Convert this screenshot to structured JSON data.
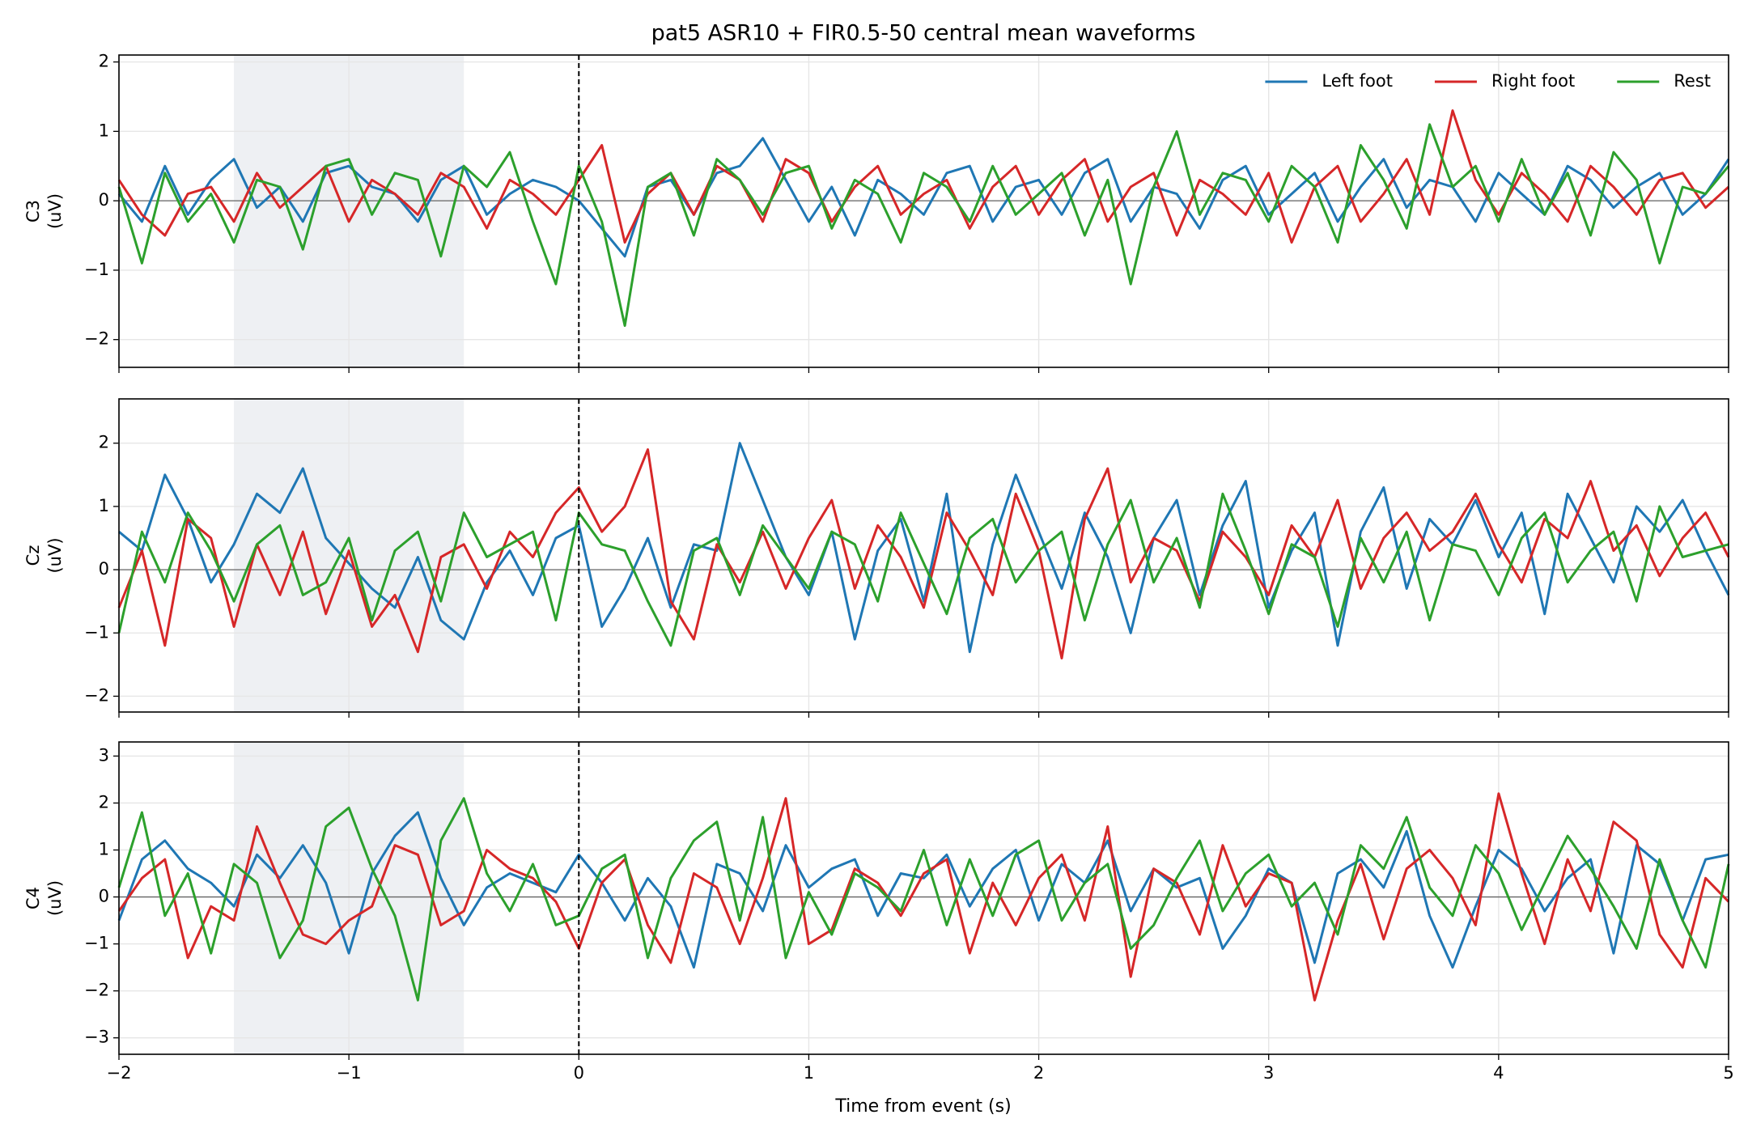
{
  "chart_data": [
    {
      "type": "line",
      "title": "pat5 ASR10 + FIR0.5-50 central mean waveforms",
      "ylabel": [
        "C3",
        "(uV)"
      ],
      "x": [
        -2.0,
        -1.9,
        -1.8,
        -1.7,
        -1.6,
        -1.5,
        -1.4,
        -1.3,
        -1.2,
        -1.1,
        -1.0,
        -0.9,
        -0.8,
        -0.7,
        -0.6,
        -0.5,
        -0.4,
        -0.3,
        -0.2,
        -0.1,
        0.0,
        0.1,
        0.2,
        0.3,
        0.4,
        0.5,
        0.6,
        0.7,
        0.8,
        0.9,
        1.0,
        1.1,
        1.2,
        1.3,
        1.4,
        1.5,
        1.6,
        1.7,
        1.8,
        1.9,
        2.0,
        2.1,
        2.2,
        2.3,
        2.4,
        2.5,
        2.6,
        2.7,
        2.8,
        2.9,
        3.0,
        3.1,
        3.2,
        3.3,
        3.4,
        3.5,
        3.6,
        3.7,
        3.8,
        3.9,
        4.0,
        4.1,
        4.2,
        4.3,
        4.4,
        4.5,
        4.6,
        4.7,
        4.8,
        4.9,
        5.0
      ],
      "xlim": [
        -2,
        5
      ],
      "xticks": [
        -2,
        -1,
        0,
        1,
        2,
        3,
        4,
        5
      ],
      "ylim": [
        -2.4,
        2.1
      ],
      "yticks": [
        {
          "value": -2,
          "label": "−2"
        },
        {
          "value": -1,
          "label": "−1"
        },
        0,
        1,
        2
      ],
      "grid": true,
      "legend": "upper right",
      "shade": [
        -1.5,
        -0.5
      ],
      "shade_color": "#eef0f3",
      "vline": 0,
      "hline": 0,
      "series": [
        {
          "name": "Left foot",
          "color": "#1f77b4",
          "values": [
            0.1,
            -0.3,
            0.5,
            -0.2,
            0.3,
            0.6,
            -0.1,
            0.2,
            -0.3,
            0.4,
            0.5,
            0.2,
            0.1,
            -0.3,
            0.3,
            0.5,
            -0.2,
            0.1,
            0.3,
            0.2,
            0.0,
            -0.4,
            -0.8,
            0.2,
            0.3,
            -0.2,
            0.4,
            0.5,
            0.9,
            0.3,
            -0.3,
            0.2,
            -0.5,
            0.3,
            0.1,
            -0.2,
            0.4,
            0.5,
            -0.3,
            0.2,
            0.3,
            -0.2,
            0.4,
            0.6,
            -0.3,
            0.2,
            0.1,
            -0.4,
            0.3,
            0.5,
            -0.2,
            0.1,
            0.4,
            -0.3,
            0.2,
            0.6,
            -0.1,
            0.3,
            0.2,
            -0.3,
            0.4,
            0.1,
            -0.2,
            0.5,
            0.3,
            -0.1,
            0.2,
            0.4,
            -0.2,
            0.1,
            0.6
          ]
        },
        {
          "name": "Right foot",
          "color": "#d62728",
          "values": [
            0.3,
            -0.2,
            -0.5,
            0.1,
            0.2,
            -0.3,
            0.4,
            -0.1,
            0.2,
            0.5,
            -0.3,
            0.3,
            0.1,
            -0.2,
            0.4,
            0.2,
            -0.4,
            0.3,
            0.1,
            -0.2,
            0.3,
            0.8,
            -0.6,
            0.1,
            0.4,
            -0.2,
            0.5,
            0.3,
            -0.3,
            0.6,
            0.4,
            -0.3,
            0.2,
            0.5,
            -0.2,
            0.1,
            0.3,
            -0.4,
            0.2,
            0.5,
            -0.2,
            0.3,
            0.6,
            -0.3,
            0.2,
            0.4,
            -0.5,
            0.3,
            0.1,
            -0.2,
            0.4,
            -0.6,
            0.2,
            0.5,
            -0.3,
            0.1,
            0.6,
            -0.2,
            1.3,
            0.3,
            -0.2,
            0.4,
            0.1,
            -0.3,
            0.5,
            0.2,
            -0.2,
            0.3,
            0.4,
            -0.1,
            0.2
          ]
        },
        {
          "name": "Rest",
          "color": "#2ca02c",
          "values": [
            0.2,
            -0.9,
            0.4,
            -0.3,
            0.1,
            -0.6,
            0.3,
            0.2,
            -0.7,
            0.5,
            0.6,
            -0.2,
            0.4,
            0.3,
            -0.8,
            0.5,
            0.2,
            0.7,
            -0.3,
            -1.2,
            0.5,
            -0.3,
            -1.8,
            0.2,
            0.4,
            -0.5,
            0.6,
            0.3,
            -0.2,
            0.4,
            0.5,
            -0.4,
            0.3,
            0.1,
            -0.6,
            0.4,
            0.2,
            -0.3,
            0.5,
            -0.2,
            0.1,
            0.4,
            -0.5,
            0.3,
            -1.2,
            0.2,
            1.0,
            -0.2,
            0.4,
            0.3,
            -0.3,
            0.5,
            0.2,
            -0.6,
            0.8,
            0.3,
            -0.4,
            1.1,
            0.2,
            0.5,
            -0.3,
            0.6,
            -0.2,
            0.4,
            -0.5,
            0.7,
            0.3,
            -0.9,
            0.2,
            0.1,
            0.5
          ]
        }
      ]
    },
    {
      "type": "line",
      "ylabel": [
        "Cz",
        "(uV)"
      ],
      "x": [
        -2.0,
        -1.9,
        -1.8,
        -1.7,
        -1.6,
        -1.5,
        -1.4,
        -1.3,
        -1.2,
        -1.1,
        -1.0,
        -0.9,
        -0.8,
        -0.7,
        -0.6,
        -0.5,
        -0.4,
        -0.3,
        -0.2,
        -0.1,
        0.0,
        0.1,
        0.2,
        0.3,
        0.4,
        0.5,
        0.6,
        0.7,
        0.8,
        0.9,
        1.0,
        1.1,
        1.2,
        1.3,
        1.4,
        1.5,
        1.6,
        1.7,
        1.8,
        1.9,
        2.0,
        2.1,
        2.2,
        2.3,
        2.4,
        2.5,
        2.6,
        2.7,
        2.8,
        2.9,
        3.0,
        3.1,
        3.2,
        3.3,
        3.4,
        3.5,
        3.6,
        3.7,
        3.8,
        3.9,
        4.0,
        4.1,
        4.2,
        4.3,
        4.4,
        4.5,
        4.6,
        4.7,
        4.8,
        4.9,
        5.0
      ],
      "xlim": [
        -2,
        5
      ],
      "xticks": [
        -2,
        -1,
        0,
        1,
        2,
        3,
        4,
        5
      ],
      "ylim": [
        -2.25,
        2.7
      ],
      "yticks": [
        {
          "value": -2,
          "label": "−2"
        },
        {
          "value": -1,
          "label": "−1"
        },
        0,
        1,
        2
      ],
      "grid": true,
      "shade": [
        -1.5,
        -0.5
      ],
      "shade_color": "#eef0f3",
      "vline": 0,
      "hline": 0,
      "series": [
        {
          "color": "#1f77b4",
          "values": [
            0.6,
            0.3,
            1.5,
            0.8,
            -0.2,
            0.4,
            1.2,
            0.9,
            1.6,
            0.5,
            0.1,
            -0.3,
            -0.6,
            0.2,
            -0.8,
            -1.1,
            -0.2,
            0.3,
            -0.4,
            0.5,
            0.7,
            -0.9,
            -0.3,
            0.5,
            -0.6,
            0.4,
            0.3,
            2.0,
            1.1,
            0.2,
            -0.4,
            0.6,
            -1.1,
            0.3,
            0.8,
            -0.5,
            1.2,
            -1.3,
            0.4,
            1.5,
            0.6,
            -0.3,
            0.9,
            0.2,
            -1.0,
            0.5,
            1.1,
            -0.4,
            0.7,
            1.4,
            -0.6,
            0.3,
            0.9,
            -1.2,
            0.6,
            1.3,
            -0.3,
            0.8,
            0.4,
            1.1,
            0.2,
            0.9,
            -0.7,
            1.2,
            0.5,
            -0.2,
            1.0,
            0.6,
            1.1,
            0.3,
            -0.4
          ]
        },
        {
          "color": "#d62728",
          "values": [
            -0.6,
            0.3,
            -1.2,
            0.8,
            0.5,
            -0.9,
            0.4,
            -0.4,
            0.6,
            -0.7,
            0.3,
            -0.9,
            -0.4,
            -1.3,
            0.2,
            0.4,
            -0.3,
            0.6,
            0.2,
            0.9,
            1.3,
            0.6,
            1.0,
            1.9,
            -0.5,
            -1.1,
            0.4,
            -0.2,
            0.6,
            -0.3,
            0.5,
            1.1,
            -0.3,
            0.7,
            0.2,
            -0.6,
            0.9,
            0.3,
            -0.4,
            1.2,
            0.3,
            -1.4,
            0.8,
            1.6,
            -0.2,
            0.5,
            0.3,
            -0.5,
            0.6,
            0.2,
            -0.4,
            0.7,
            0.2,
            1.1,
            -0.3,
            0.5,
            0.9,
            0.3,
            0.6,
            1.2,
            0.4,
            -0.2,
            0.8,
            0.5,
            1.4,
            0.3,
            0.7,
            -0.1,
            0.5,
            0.9,
            0.2
          ]
        },
        {
          "color": "#2ca02c",
          "values": [
            -1.0,
            0.6,
            -0.2,
            0.9,
            0.3,
            -0.5,
            0.4,
            0.7,
            -0.4,
            -0.2,
            0.5,
            -0.8,
            0.3,
            0.6,
            -0.5,
            0.9,
            0.2,
            0.4,
            0.6,
            -0.8,
            0.9,
            0.4,
            0.3,
            -0.5,
            -1.2,
            0.3,
            0.5,
            -0.4,
            0.7,
            0.2,
            -0.3,
            0.6,
            0.4,
            -0.5,
            0.9,
            0.1,
            -0.7,
            0.5,
            0.8,
            -0.2,
            0.3,
            0.6,
            -0.8,
            0.4,
            1.1,
            -0.2,
            0.5,
            -0.6,
            1.2,
            0.3,
            -0.7,
            0.4,
            0.2,
            -0.9,
            0.5,
            -0.2,
            0.6,
            -0.8,
            0.4,
            0.3,
            -0.4,
            0.5,
            0.9,
            -0.2,
            0.3,
            0.6,
            -0.5,
            1.0,
            0.2,
            0.3,
            0.4
          ]
        }
      ]
    },
    {
      "type": "line",
      "ylabel": [
        "C4",
        "(uV)"
      ],
      "xlabel": "Time from event (s)",
      "x": [
        -2.0,
        -1.9,
        -1.8,
        -1.7,
        -1.6,
        -1.5,
        -1.4,
        -1.3,
        -1.2,
        -1.1,
        -1.0,
        -0.9,
        -0.8,
        -0.7,
        -0.6,
        -0.5,
        -0.4,
        -0.3,
        -0.2,
        -0.1,
        0.0,
        0.1,
        0.2,
        0.3,
        0.4,
        0.5,
        0.6,
        0.7,
        0.8,
        0.9,
        1.0,
        1.1,
        1.2,
        1.3,
        1.4,
        1.5,
        1.6,
        1.7,
        1.8,
        1.9,
        2.0,
        2.1,
        2.2,
        2.3,
        2.4,
        2.5,
        2.6,
        2.7,
        2.8,
        2.9,
        3.0,
        3.1,
        3.2,
        3.3,
        3.4,
        3.5,
        3.6,
        3.7,
        3.8,
        3.9,
        4.0,
        4.1,
        4.2,
        4.3,
        4.4,
        4.5,
        4.6,
        4.7,
        4.8,
        4.9,
        5.0
      ],
      "xlim": [
        -2,
        5
      ],
      "xticks": [
        {
          "value": -2,
          "label": "−2"
        },
        {
          "value": -1,
          "label": "−1"
        },
        0,
        1,
        2,
        3,
        4,
        5
      ],
      "ylim": [
        -3.35,
        3.3
      ],
      "yticks": [
        {
          "value": -3,
          "label": "−3"
        },
        {
          "value": -2,
          "label": "−2"
        },
        {
          "value": -1,
          "label": "−1"
        },
        0,
        1,
        2,
        3
      ],
      "grid": true,
      "shade": [
        -1.5,
        -0.5
      ],
      "shade_color": "#eef0f3",
      "vline": 0,
      "hline": 0,
      "series": [
        {
          "color": "#1f77b4",
          "values": [
            -0.5,
            0.8,
            1.2,
            0.6,
            0.3,
            -0.2,
            0.9,
            0.4,
            1.1,
            0.3,
            -1.2,
            0.5,
            1.3,
            1.8,
            0.4,
            -0.6,
            0.2,
            0.5,
            0.3,
            0.1,
            0.9,
            0.3,
            -0.5,
            0.4,
            -0.2,
            -1.5,
            0.7,
            0.5,
            -0.3,
            1.1,
            0.2,
            0.6,
            0.8,
            -0.4,
            0.5,
            0.4,
            0.9,
            -0.2,
            0.6,
            1.0,
            -0.5,
            0.7,
            0.3,
            1.2,
            -0.3,
            0.6,
            0.2,
            0.4,
            -1.1,
            -0.4,
            0.6,
            0.3,
            -1.4,
            0.5,
            0.8,
            0.2,
            1.4,
            -0.4,
            -1.5,
            -0.2,
            1.0,
            0.6,
            -0.3,
            0.4,
            0.8,
            -1.2,
            1.1,
            0.7,
            -0.5,
            0.8,
            0.9
          ]
        },
        {
          "color": "#d62728",
          "values": [
            -0.3,
            0.4,
            0.8,
            -1.3,
            -0.2,
            -0.5,
            1.5,
            0.3,
            -0.8,
            -1.0,
            -0.5,
            -0.2,
            1.1,
            0.9,
            -0.6,
            -0.3,
            1.0,
            0.6,
            0.4,
            -0.1,
            -1.1,
            0.3,
            0.8,
            -0.6,
            -1.4,
            0.5,
            0.2,
            -1.0,
            0.4,
            2.1,
            -1.0,
            -0.7,
            0.6,
            0.3,
            -0.4,
            0.5,
            0.8,
            -1.2,
            0.3,
            -0.6,
            0.4,
            0.9,
            -0.5,
            1.5,
            -1.7,
            0.6,
            0.3,
            -0.8,
            1.1,
            -0.2,
            0.5,
            0.3,
            -2.2,
            -0.5,
            0.7,
            -0.9,
            0.6,
            1.0,
            0.4,
            -0.6,
            2.2,
            0.5,
            -1.0,
            0.8,
            -0.3,
            1.6,
            1.2,
            -0.8,
            -1.5,
            0.4,
            -0.1
          ]
        },
        {
          "color": "#2ca02c",
          "values": [
            0.2,
            1.8,
            -0.4,
            0.5,
            -1.2,
            0.7,
            0.3,
            -1.3,
            -0.5,
            1.5,
            1.9,
            0.6,
            -0.4,
            -2.2,
            1.2,
            2.1,
            0.5,
            -0.3,
            0.7,
            -0.6,
            -0.4,
            0.6,
            0.9,
            -1.3,
            0.4,
            1.2,
            1.6,
            -0.5,
            1.7,
            -1.3,
            0.1,
            -0.8,
            0.5,
            0.2,
            -0.3,
            1.0,
            -0.6,
            0.8,
            -0.4,
            0.9,
            1.2,
            -0.5,
            0.3,
            0.7,
            -1.1,
            -0.6,
            0.4,
            1.2,
            -0.3,
            0.5,
            0.9,
            -0.2,
            0.3,
            -0.8,
            1.1,
            0.6,
            1.7,
            0.2,
            -0.4,
            1.1,
            0.5,
            -0.7,
            0.3,
            1.3,
            0.6,
            -0.2,
            -1.1,
            0.8,
            -0.5,
            -1.5,
            0.7
          ]
        }
      ]
    }
  ]
}
